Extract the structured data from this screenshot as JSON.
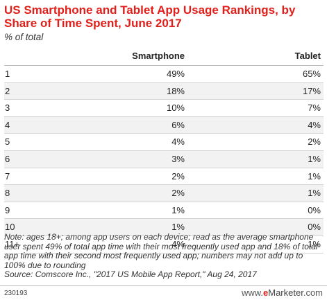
{
  "header": {
    "title": "US Smartphone and Tablet App Usage Rankings, by Share of Time Spent, June 2017",
    "subtitle": "% of total"
  },
  "chart_data": {
    "type": "table",
    "title": "US Smartphone and Tablet App Usage Rankings, by Share of Time Spent, June 2017",
    "subtitle": "% of total",
    "columns": [
      "",
      "Smartphone",
      "Tablet"
    ],
    "categories": [
      "1",
      "2",
      "3",
      "4",
      "5",
      "6",
      "7",
      "8",
      "9",
      "10",
      "11+"
    ],
    "series": [
      {
        "name": "Smartphone",
        "values": [
          49,
          18,
          10,
          6,
          4,
          3,
          2,
          2,
          1,
          1,
          4
        ]
      },
      {
        "name": "Tablet",
        "values": [
          65,
          17,
          7,
          4,
          2,
          1,
          1,
          1,
          0,
          0,
          1
        ]
      }
    ],
    "unit": "%"
  },
  "footer": {
    "note": "Note: ages 18+; among app users on each device; read as the average smartphone user spent 49% of total app time with their most frequently used app and 18% of total app time with their second most frequently used app; numbers may not add up to 100% due to rounding",
    "source": "Source: Comscore Inc., \"2017 US Mobile App Report,\" Aug 24, 2017",
    "chart_id": "230193",
    "brand_prefix": "www.",
    "brand_e": "e",
    "brand_rest": "Marketer",
    "brand_suffix": ".com"
  },
  "colors": {
    "title": "#e0201b",
    "row_alt": "#f2f2f2"
  }
}
